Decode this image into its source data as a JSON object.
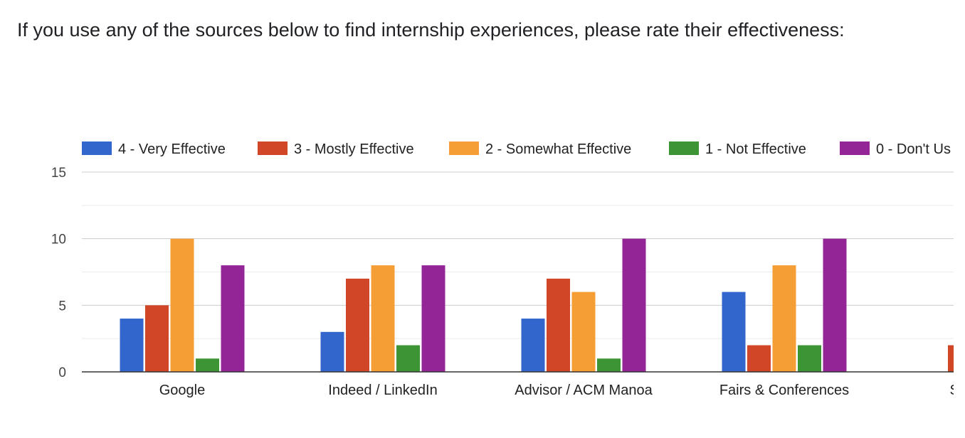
{
  "title": "If you use any of the sources below to find internship experiences, please rate their effectiveness:",
  "chart_data": {
    "type": "bar",
    "categories": [
      "Google",
      "Indeed / LinkedIn",
      "Advisor / ACM Manoa",
      "Fairs & Conferences",
      "SECE / Ma"
    ],
    "series": [
      {
        "name": "4 - Very Effective",
        "color": "#3366cc",
        "values": [
          4,
          3,
          4,
          6,
          0
        ]
      },
      {
        "name": "3 - Mostly Effective",
        "color": "#d14627",
        "values": [
          5,
          7,
          7,
          2,
          2
        ]
      },
      {
        "name": "2 - Somewhat Effective",
        "color": "#f59e36",
        "values": [
          10,
          8,
          6,
          8,
          null
        ]
      },
      {
        "name": "1 - Not Effective",
        "color": "#3c9435",
        "values": [
          1,
          2,
          1,
          2,
          null
        ]
      },
      {
        "name": "0 - Don't Us",
        "color": "#932597",
        "values": [
          8,
          8,
          10,
          10,
          null
        ]
      }
    ],
    "y_ticks": [
      0,
      5,
      10,
      15
    ],
    "ylim": [
      0,
      15
    ],
    "grid": true,
    "legend_position": "top"
  }
}
